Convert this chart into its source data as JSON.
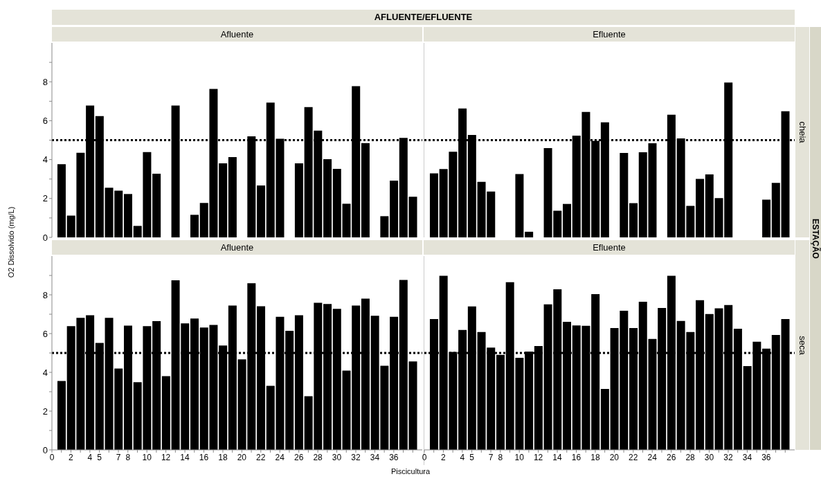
{
  "chart_data": [
    {
      "type": "bar",
      "title": "Afluente",
      "ylabel": "O2 Dissolvido (mg/L)",
      "annotations": [
        "AFLUENTE/EFLUENTE",
        "ESTAÇÃO"
      ],
      "x": [
        1,
        2,
        3,
        4,
        5,
        6,
        7,
        8,
        9,
        10,
        11,
        12,
        13,
        14,
        15,
        16,
        17,
        18,
        19,
        20,
        21,
        22,
        23,
        24,
        25,
        26,
        27,
        28,
        29,
        30,
        31,
        32,
        33,
        34,
        35,
        36,
        37,
        38
      ],
      "values": [
        3.76,
        1.12,
        4.35,
        6.78,
        6.24,
        2.55,
        2.4,
        2.23,
        0.59,
        4.39,
        3.27,
        null,
        6.78,
        null,
        1.16,
        1.77,
        7.63,
        3.81,
        4.13,
        null,
        5.2,
        2.67,
        6.93,
        5.07,
        null,
        3.81,
        6.7,
        5.49,
        4.02,
        3.52,
        1.73,
        7.78,
        4.85,
        null,
        1.09,
        2.92,
        5.12,
        2.09
      ],
      "color": "#000000",
      "xlim": [
        0,
        39
      ],
      "ylim": [
        0,
        10
      ],
      "yticks": [
        0,
        {
          "value": 1,
          "label": null
        },
        2,
        {
          "value": 3,
          "label": null
        },
        4,
        {
          "value": 5,
          "label": null
        },
        6,
        {
          "value": 7,
          "label": null
        },
        8,
        {
          "value": 9,
          "label": null
        }
      ],
      "ref_lines": [
        {
          "axis": "y",
          "value": 5,
          "color": "#000000",
          "line_style": "dotted"
        }
      ],
      "tick_labels": "y"
    },
    {
      "type": "bar",
      "title": "Efluente",
      "y2label": "cheia",
      "x": [
        1,
        2,
        3,
        4,
        5,
        6,
        7,
        8,
        9,
        10,
        11,
        12,
        13,
        14,
        15,
        16,
        17,
        18,
        19,
        20,
        21,
        22,
        23,
        24,
        25,
        26,
        27,
        28,
        29,
        30,
        31,
        32,
        33,
        34,
        35,
        36,
        37,
        38
      ],
      "values": [
        3.29,
        3.51,
        4.4,
        6.63,
        5.27,
        2.86,
        2.36,
        null,
        null,
        3.26,
        0.29,
        null,
        4.59,
        1.37,
        1.72,
        5.23,
        6.45,
        4.96,
        5.92,
        null,
        4.34,
        1.76,
        4.38,
        4.84,
        null,
        6.31,
        5.09,
        1.62,
        3.01,
        3.24,
        2.02,
        7.96,
        null,
        null,
        null,
        1.94,
        2.8,
        6.49
      ],
      "color": "#000000",
      "xlim": [
        0,
        39
      ],
      "ylim": [
        0,
        10
      ],
      "ref_lines": [
        {
          "axis": "y",
          "value": 5,
          "color": "#000000",
          "line_style": "dotted"
        }
      ],
      "tick_labels": false
    },
    {
      "type": "bar",
      "title": "Afluente",
      "xlabel": "Piscicultura",
      "x": [
        1,
        2,
        3,
        4,
        5,
        6,
        7,
        8,
        9,
        10,
        11,
        12,
        13,
        14,
        15,
        16,
        17,
        18,
        19,
        20,
        21,
        22,
        23,
        24,
        25,
        26,
        27,
        28,
        29,
        30,
        31,
        32,
        33,
        34,
        35,
        36,
        37,
        38
      ],
      "values": [
        3.55,
        6.38,
        6.81,
        6.95,
        5.52,
        6.81,
        4.2,
        6.41,
        3.49,
        6.38,
        6.64,
        3.8,
        8.75,
        6.53,
        6.78,
        6.31,
        6.45,
        5.38,
        7.45,
        4.67,
        8.6,
        7.41,
        3.3,
        6.87,
        6.14,
        6.95,
        2.77,
        7.59,
        7.53,
        7.28,
        4.09,
        7.45,
        7.8,
        6.92,
        4.34,
        6.87,
        8.77,
        4.56
      ],
      "color": "#000000",
      "xlim": [
        0,
        39
      ],
      "ylim": [
        0,
        10
      ],
      "xticks": [
        0,
        {
          "value": 1,
          "label": null
        },
        2,
        {
          "value": 3,
          "label": null
        },
        4,
        5,
        {
          "value": 6,
          "label": null
        },
        7,
        8,
        {
          "value": 9,
          "label": null
        },
        10,
        {
          "value": 11,
          "label": null
        },
        12,
        {
          "value": 13,
          "label": null
        },
        14,
        {
          "value": 15,
          "label": null
        },
        16,
        {
          "value": 17,
          "label": null
        },
        18,
        {
          "value": 19,
          "label": null
        },
        20,
        {
          "value": 21,
          "label": null
        },
        22,
        {
          "value": 23,
          "label": null
        },
        24,
        {
          "value": 25,
          "label": null
        },
        26,
        {
          "value": 27,
          "label": null
        },
        28,
        {
          "value": 29,
          "label": null
        },
        30,
        {
          "value": 31,
          "label": null
        },
        32,
        {
          "value": 33,
          "label": null
        },
        34,
        {
          "value": 35,
          "label": null
        },
        36,
        {
          "value": 37,
          "label": null
        },
        {
          "value": 38,
          "label": null
        }
      ],
      "yticks": [
        0,
        {
          "value": 1,
          "label": null
        },
        2,
        {
          "value": 3,
          "label": null
        },
        4,
        {
          "value": 5,
          "label": null
        },
        6,
        {
          "value": 7,
          "label": null
        },
        8,
        {
          "value": 9,
          "label": null
        }
      ],
      "ref_lines": [
        {
          "axis": "y",
          "value": 5,
          "color": "#000000",
          "line_style": "dotted"
        }
      ]
    },
    {
      "type": "bar",
      "title": "Efluente",
      "y2label": "seca",
      "x": [
        1,
        2,
        3,
        4,
        5,
        6,
        7,
        8,
        9,
        10,
        11,
        12,
        13,
        14,
        15,
        16,
        17,
        18,
        19,
        20,
        21,
        22,
        23,
        24,
        25,
        26,
        27,
        28,
        29,
        30,
        31,
        32,
        33,
        34,
        35,
        36,
        37,
        38
      ],
      "values": [
        6.75,
        8.98,
        5.05,
        6.19,
        7.4,
        6.08,
        5.28,
        4.9,
        8.65,
        4.75,
        5.07,
        5.36,
        7.51,
        8.29,
        6.61,
        6.42,
        6.4,
        8.04,
        3.14,
        6.29,
        7.18,
        6.29,
        7.64,
        5.72,
        7.32,
        8.98,
        6.65,
        6.08,
        7.72,
        7.01,
        7.3,
        7.47,
        6.25,
        4.32,
        5.58,
        5.22,
        5.93,
        6.75
      ],
      "color": "#000000",
      "xlim": [
        0,
        39
      ],
      "ylim": [
        0,
        10
      ],
      "xticks": [
        0,
        {
          "value": 1,
          "label": null
        },
        2,
        {
          "value": 3,
          "label": null
        },
        4,
        5,
        {
          "value": 6,
          "label": null
        },
        7,
        8,
        {
          "value": 9,
          "label": null
        },
        10,
        {
          "value": 11,
          "label": null
        },
        12,
        {
          "value": 13,
          "label": null
        },
        14,
        {
          "value": 15,
          "label": null
        },
        16,
        {
          "value": 17,
          "label": null
        },
        18,
        {
          "value": 19,
          "label": null
        },
        20,
        {
          "value": 21,
          "label": null
        },
        22,
        {
          "value": 23,
          "label": null
        },
        24,
        {
          "value": 25,
          "label": null
        },
        26,
        {
          "value": 27,
          "label": null
        },
        28,
        {
          "value": 29,
          "label": null
        },
        30,
        {
          "value": 31,
          "label": null
        },
        32,
        {
          "value": 33,
          "label": null
        },
        34,
        {
          "value": 35,
          "label": null
        },
        36,
        {
          "value": 37,
          "label": null
        },
        {
          "value": 38,
          "label": null
        }
      ],
      "ref_lines": [
        {
          "axis": "y",
          "value": 5,
          "color": "#000000",
          "line_style": "dotted"
        }
      ],
      "tick_labels": "x"
    }
  ]
}
